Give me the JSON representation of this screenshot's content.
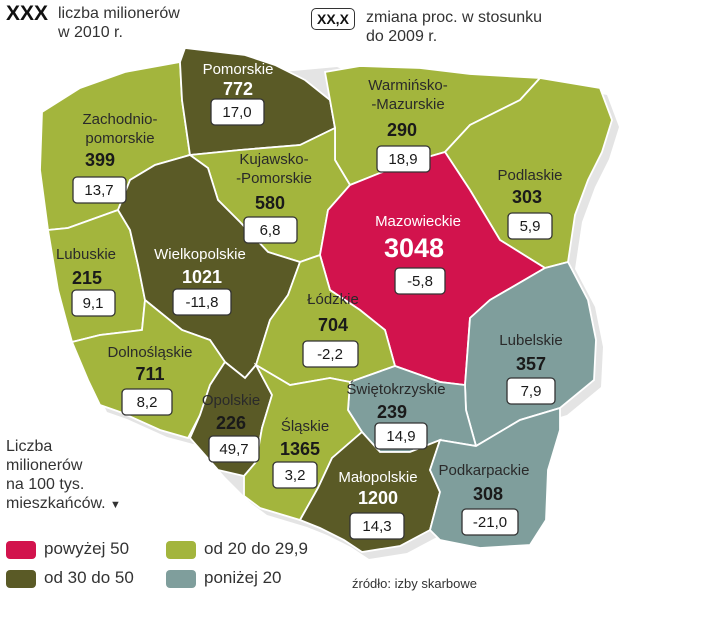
{
  "legend_top": {
    "value_key": "XXX",
    "value_desc_line1": "liczba milionerów",
    "value_desc_line2": "w 2010 r.",
    "change_key": "XX,X",
    "change_desc_line1": "zmiana proc. w stosunku",
    "change_desc_line2": "do 2009 r."
  },
  "side_note": {
    "line1": "Liczba",
    "line2": "milionerów",
    "line3": "na 100 tys.",
    "line4": "mieszkańców."
  },
  "categories": [
    {
      "label": "powyżej 50",
      "color": "#d2134d"
    },
    {
      "label": "od 20 do 29,9",
      "color": "#a3b53d"
    },
    {
      "label": "od 30 do 50",
      "color": "#5a5a26"
    },
    {
      "label": "poniżej 20",
      "color": "#7f9e9c"
    }
  ],
  "source": "źródło: izby skarbowe",
  "regions": {
    "pomorskie": {
      "name": "Pomorskie",
      "value": "772",
      "change": "17,0",
      "color": "#5a5a26"
    },
    "zachodniopomorskie": {
      "name1": "Zachodnio-",
      "name2": "pomorskie",
      "value": "399",
      "change": "13,7",
      "color": "#a3b53d"
    },
    "warminsko": {
      "name1": "Warmińsko-",
      "name2": "-Mazurskie",
      "value": "290",
      "change": "18,9",
      "color": "#a3b53d"
    },
    "kujawsko": {
      "name1": "Kujawsko-",
      "name2": "-Pomorskie",
      "value": "580",
      "change": "6,8",
      "color": "#a3b53d"
    },
    "podlaskie": {
      "name": "Podlaskie",
      "value": "303",
      "change": "5,9",
      "color": "#a3b53d"
    },
    "mazowieckie": {
      "name": "Mazowieckie",
      "value": "3048",
      "change": "-5,8",
      "color": "#d2134d"
    },
    "lubuskie": {
      "name": "Lubuskie",
      "value": "215",
      "change": "9,1",
      "color": "#a3b53d"
    },
    "wielkopolskie": {
      "name": "Wielkopolskie",
      "value": "1021",
      "change": "-11,8",
      "color": "#5a5a26"
    },
    "lodzkie": {
      "name": "Łódzkie",
      "value": "704",
      "change": "-2,2",
      "color": "#a3b53d"
    },
    "lubelskie": {
      "name": "Lubelskie",
      "value": "357",
      "change": "7,9",
      "color": "#7f9e9c"
    },
    "dolnoslaskie": {
      "name": "Dolnośląskie",
      "value": "711",
      "change": "8,2",
      "color": "#a3b53d"
    },
    "swietokrzyskie": {
      "name": "Świętokrzyskie",
      "value": "239",
      "change": "14,9",
      "color": "#7f9e9c"
    },
    "opolskie": {
      "name": "Opolskie",
      "value": "226",
      "change": "49,7",
      "color": "#5a5a26"
    },
    "slaskie": {
      "name": "Śląskie",
      "value": "1365",
      "change": "3,2",
      "color": "#a3b53d"
    },
    "malopolskie": {
      "name": "Małopolskie",
      "value": "1200",
      "change": "14,3",
      "color": "#5a5a26"
    },
    "podkarpackie": {
      "name": "Podkarpackie",
      "value": "308",
      "change": "-21,0",
      "color": "#7f9e9c"
    }
  }
}
